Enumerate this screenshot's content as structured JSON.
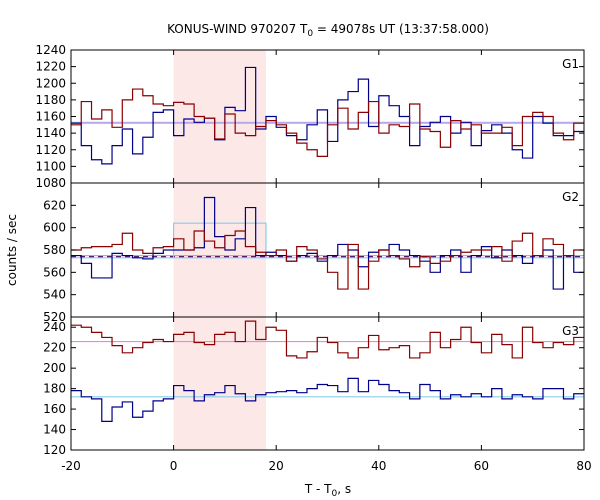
{
  "chart_data": {
    "type": "line",
    "title_main": "KONUS-WIND 970207 T",
    "title_sub": "0",
    "title_rest": " = 49078s UT (13:37:58.000)",
    "xlabel_main": "T - T",
    "xlabel_sub": "0",
    "xlabel_rest": ", s",
    "ylabel": "counts / sec",
    "xlim": [
      -20,
      80
    ],
    "x_ticks": [
      -20,
      0,
      20,
      40,
      60,
      80
    ],
    "highlight_interval": [
      0,
      18
    ],
    "grid": false,
    "colors": {
      "red_series": "#8b0000",
      "blue_series": "#00008b",
      "fit_blue": "#87ceeb",
      "fit_red": "#ee82ee",
      "highlight": "#fde8e8",
      "dashed_bg": "#3b0060"
    },
    "bin_edges": [
      -20,
      -18,
      -16,
      -14,
      -12,
      -10,
      -8,
      -6,
      -4,
      -2,
      0,
      2,
      4,
      6,
      8,
      10,
      12,
      14,
      16,
      18,
      20,
      22,
      24,
      26,
      28,
      30,
      32,
      34,
      36,
      38,
      40,
      42,
      44,
      46,
      48,
      50,
      52,
      54,
      56,
      58,
      60,
      62,
      64,
      66,
      68,
      70,
      72,
      74,
      76,
      78,
      80
    ],
    "panels": [
      {
        "label": "G1",
        "ylim": [
          1080,
          1240
        ],
        "y_ticks": [
          1080,
          1100,
          1120,
          1140,
          1160,
          1180,
          1200,
          1220,
          1240
        ],
        "series": [
          {
            "color_key": "blue_series",
            "values": [
              1152,
              1125,
              1108,
              1103,
              1125,
              1145,
              1115,
              1135,
              1165,
              1168,
              1137,
              1157,
              1153,
              1158,
              1132,
              1171,
              1167,
              1219,
              1145,
              1160,
              1147,
              1137,
              1132,
              1150,
              1168,
              1130,
              1180,
              1190,
              1205,
              1148,
              1185,
              1173,
              1160,
              1125,
              1148,
              1153,
              1160,
              1140,
              1153,
              1125,
              1143,
              1150,
              1140,
              1120,
              1110,
              1160,
              1152,
              1137,
              1137,
              1142
            ]
          },
          {
            "color_key": "red_series",
            "values": [
              1150,
              1178,
              1157,
              1168,
              1147,
              1180,
              1193,
              1185,
              1175,
              1173,
              1177,
              1175,
              1160,
              1158,
              1133,
              1163,
              1140,
              1137,
              1148,
              1155,
              1150,
              1140,
              1128,
              1120,
              1112,
              1150,
              1170,
              1145,
              1165,
              1178,
              1140,
              1150,
              1148,
              1175,
              1145,
              1142,
              1123,
              1155,
              1145,
              1150,
              1140,
              1140,
              1147,
              1125,
              1160,
              1165,
              1160,
              1140,
              1132,
              1152
            ]
          }
        ],
        "fits": [
          {
            "color_key": "fit_blue",
            "value": 1153,
            "style": "solid"
          },
          {
            "color_key": "fit_red",
            "value": 1152,
            "style": "solid"
          }
        ]
      },
      {
        "label": "G2",
        "ylim": [
          520,
          640
        ],
        "y_ticks": [
          520,
          540,
          560,
          580,
          600,
          620
        ],
        "series": [
          {
            "color_key": "blue_series",
            "values": [
              575,
              568,
              555,
              555,
              577,
              575,
              573,
              572,
              577,
              580,
              580,
              580,
              582,
              627,
              592,
              580,
              590,
              618,
              575,
              578,
              575,
              570,
              575,
              577,
              570,
              575,
              585,
              580,
              565,
              578,
              580,
              585,
              580,
              575,
              570,
              560,
              575,
              580,
              560,
              575,
              583,
              573,
              580,
              575,
              568,
              575,
              580,
              545,
              575,
              560
            ]
          },
          {
            "color_key": "red_series",
            "values": [
              580,
              582,
              583,
              583,
              585,
              595,
              580,
              577,
              582,
              583,
              590,
              580,
              597,
              588,
              582,
              593,
              597,
              583,
              578,
              575,
              580,
              570,
              583,
              580,
              572,
              560,
              545,
              585,
              545,
              570,
              580,
              575,
              572,
              565,
              574,
              568,
              570,
              575,
              578,
              580,
              580,
              583,
              570,
              588,
              595,
              575,
              590,
              585,
              575,
              580
            ]
          }
        ],
        "fits": [
          {
            "color_key": "fit_blue",
            "value": 573,
            "style": "solid"
          },
          {
            "color_key": "fit_red",
            "value": 575,
            "style": "solid"
          },
          {
            "color_key": "dashed_bg",
            "value": 574,
            "style": "dashed"
          }
        ],
        "fit_step": {
          "color_key": "fit_blue",
          "x0": 0,
          "x1": 18,
          "value": 604
        }
      },
      {
        "label": "G3",
        "ylim": [
          120,
          250
        ],
        "y_ticks": [
          120,
          140,
          160,
          180,
          200,
          220,
          240
        ],
        "series": [
          {
            "color_key": "blue_series",
            "values": [
              178,
              172,
              170,
              148,
              162,
              167,
              152,
              158,
              168,
              170,
              183,
              178,
              168,
              174,
              176,
              183,
              175,
              168,
              174,
              176,
              177,
              178,
              176,
              180,
              184,
              183,
              177,
              190,
              177,
              188,
              184,
              178,
              176,
              170,
              184,
              178,
              170,
              174,
              172,
              175,
              172,
              180,
              170,
              174,
              172,
              170,
              180,
              180,
              170,
              175
            ]
          },
          {
            "color_key": "red_series",
            "values": [
              242,
              240,
              235,
              230,
              222,
              215,
              220,
              225,
              228,
              226,
              233,
              235,
              225,
              223,
              233,
              235,
              226,
              246,
              228,
              240,
              237,
              212,
              210,
              216,
              230,
              225,
              215,
              210,
              220,
              232,
              218,
              220,
              222,
              210,
              215,
              235,
              220,
              228,
              240,
              225,
              215,
              233,
              223,
              210,
              240,
              225,
              220,
              225,
              223,
              230
            ]
          }
        ],
        "fits": [
          {
            "color_key": "fit_blue",
            "value": 172,
            "style": "solid"
          },
          {
            "color_key": "fit_red",
            "value": 226,
            "style": "solid"
          }
        ]
      }
    ]
  }
}
